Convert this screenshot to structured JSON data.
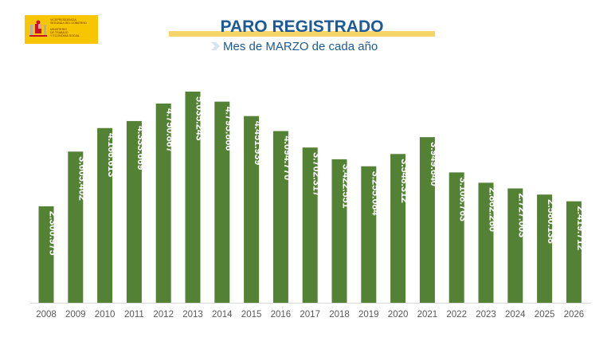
{
  "logo": {
    "lines_top": [
      "VICEPRESIDENCIA",
      "SEGUNDA DEL GOBIERNO"
    ],
    "lines_bottom": [
      "MINISTERIO",
      "DE TRABAJO",
      "Y ECONOMÍA SOCIAL"
    ]
  },
  "header": {
    "title": "PARO REGISTRADO",
    "subtitle": "Mes de MARZO de cada año"
  },
  "colors": {
    "bar": "#548235",
    "title": "#1c5a96",
    "band": "#f7d468"
  },
  "chart_data": {
    "type": "bar",
    "title": "PARO REGISTRADO",
    "subtitle": "Mes de MARZO de cada año",
    "categories": [
      "2008",
      "2009",
      "2010",
      "2011",
      "2012",
      "2013",
      "2014",
      "2015",
      "2016",
      "2017",
      "2018",
      "2019",
      "2020",
      "2021",
      "2022",
      "2023",
      "2024",
      "2025",
      "2026"
    ],
    "values": [
      2300975,
      3605402,
      4166613,
      4333669,
      4750867,
      5035243,
      4795866,
      4451939,
      4094770,
      3702317,
      3422551,
      3255084,
      3548312,
      3949640,
      3108763,
      2862260,
      2727003,
      2580138,
      2419712
    ],
    "labels": [
      "2.300.975",
      "3.605.402",
      "4.166.613",
      "4.333.669",
      "4.750.867",
      "5.035.243",
      "4.795.866",
      "4.451.939",
      "4.094.770",
      "3.702.317",
      "3.422.551",
      "3.255.084",
      "3.548.312",
      "3.949.640",
      "3.108.763",
      "2.862.260",
      "2.727.003",
      "2.580.138",
      "2.419.712"
    ],
    "ylim": [
      0,
      5035243
    ],
    "grid": false,
    "legend": "none"
  }
}
